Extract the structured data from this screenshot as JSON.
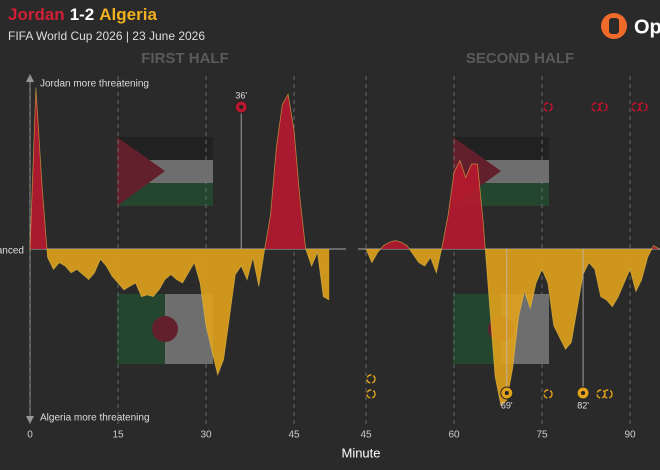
{
  "header": {
    "home": "Jordan",
    "score": "1-2",
    "away": "Algeria",
    "subtitle": "FIFA World Cup 2026 | 23 June 2026",
    "logo": "Op"
  },
  "labels": {
    "top": "Jordan more threatening",
    "bottom": "Algeria more threatening",
    "balanced": "Balanced",
    "x_label": "Minute"
  },
  "chart_data": [
    {
      "type": "area",
      "title": "FIRST HALF",
      "color_positive": "#b8182f",
      "color_negative": "#e0a21c",
      "x": [
        0,
        1,
        2,
        3,
        4,
        5,
        6,
        7,
        8,
        9,
        10,
        11,
        12,
        13,
        14,
        15,
        16,
        17,
        18,
        19,
        20,
        21,
        22,
        23,
        24,
        25,
        26,
        27,
        28,
        29,
        30,
        31,
        32,
        33,
        34,
        35,
        36,
        37,
        38,
        39,
        40,
        41,
        42,
        43,
        44,
        45,
        46,
        47,
        48,
        49,
        50,
        51
      ],
      "values": [
        0,
        95,
        40,
        -5,
        -12,
        -8,
        -10,
        -14,
        -12,
        -15,
        -18,
        -14,
        -6,
        -10,
        -16,
        -20,
        -24,
        -22,
        -20,
        -28,
        -27,
        -28,
        -24,
        -18,
        -15,
        -18,
        -20,
        -14,
        -8,
        -20,
        -45,
        -60,
        -74,
        -65,
        -40,
        -15,
        -10,
        -18,
        -5,
        -22,
        0,
        20,
        60,
        85,
        91,
        70,
        30,
        0,
        -10,
        -2,
        -28,
        -30
      ],
      "xlim": [
        0,
        51
      ],
      "ylim": [
        -100,
        100
      ],
      "xticks": [
        0,
        15,
        30,
        45
      ],
      "grid": true,
      "goals": [
        {
          "minute": 36,
          "label": "36'",
          "color": "#b8182f"
        }
      ]
    },
    {
      "type": "area",
      "title": "SECOND HALF",
      "color_positive": "#b8182f",
      "color_negative": "#e0a21c",
      "x": [
        45,
        46,
        47,
        48,
        49,
        50,
        51,
        52,
        53,
        54,
        55,
        56,
        57,
        58,
        59,
        60,
        61,
        62,
        63,
        64,
        65,
        66,
        67,
        68,
        69,
        70,
        71,
        72,
        73,
        74,
        75,
        76,
        77,
        78,
        79,
        80,
        81,
        82,
        83,
        84,
        85,
        86,
        87,
        88,
        89,
        90,
        91,
        92,
        93,
        94,
        95
      ],
      "values": [
        0,
        -8,
        -2,
        2,
        4,
        5,
        4,
        2,
        -3,
        -8,
        -10,
        -5,
        -14,
        2,
        20,
        45,
        52,
        42,
        50,
        50,
        15,
        -30,
        -75,
        -92,
        -89,
        -70,
        -40,
        -25,
        -35,
        -20,
        -12,
        -20,
        -45,
        -52,
        -59,
        -55,
        -35,
        -15,
        -8,
        -12,
        -28,
        -30,
        -34,
        -28,
        -20,
        -12,
        -25,
        -18,
        -5,
        2,
        0
      ],
      "xlim": [
        45,
        95
      ],
      "ylim": [
        -100,
        100
      ],
      "xticks": [
        45,
        60,
        75,
        90
      ],
      "grid": true,
      "goals": [
        {
          "minute": 69,
          "label": "69'",
          "color": "#e0a21c"
        },
        {
          "minute": 82,
          "label": "82'",
          "color": "#e0a21c"
        }
      ]
    }
  ]
}
